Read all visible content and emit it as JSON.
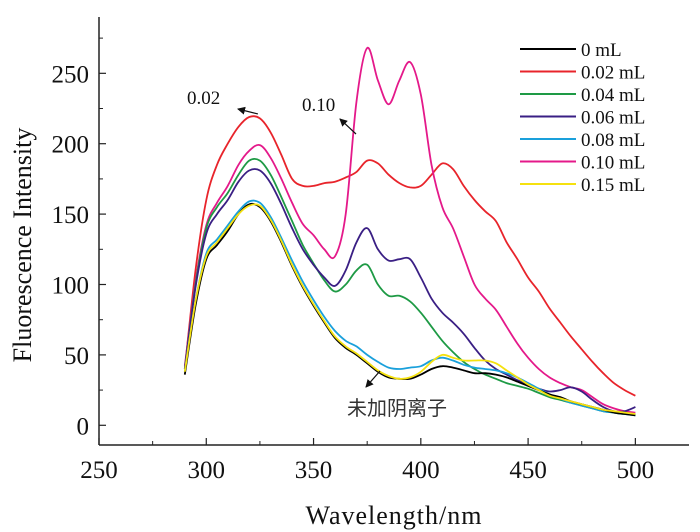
{
  "chart_data": {
    "type": "line",
    "title": "",
    "xlabel": "Wavelength/nm",
    "ylabel": "Fluorescence Intensity",
    "xlim": [
      250,
      525
    ],
    "ylim": [
      -14,
      290
    ],
    "xticks": [
      250,
      300,
      350,
      400,
      450,
      500
    ],
    "xtick_labels": [
      "250",
      "300",
      "350",
      "400",
      "450",
      "500"
    ],
    "yticks": [
      0,
      50,
      100,
      150,
      200,
      250
    ],
    "ytick_labels": [
      "0",
      "50",
      "100",
      "150",
      "200",
      "250"
    ],
    "grid": false,
    "legend_position": "top-right",
    "series": [
      {
        "name": "0 mL",
        "color": "#000000",
        "x": [
          290,
          295,
          300,
          305,
          310,
          315,
          320,
          325,
          330,
          335,
          340,
          345,
          350,
          355,
          360,
          365,
          370,
          375,
          380,
          385,
          390,
          395,
          400,
          405,
          410,
          415,
          420,
          425,
          430,
          435,
          440,
          445,
          450,
          455,
          460,
          465,
          470,
          475,
          480,
          485,
          490,
          495,
          500
        ],
        "y": [
          36,
          85,
          118,
          128,
          138,
          150,
          157,
          155,
          145,
          130,
          113,
          98,
          85,
          73,
          62,
          55,
          50,
          44,
          38,
          34,
          33,
          33,
          36,
          40,
          42,
          41,
          39,
          37,
          37,
          36,
          34,
          31,
          28,
          25,
          22,
          20,
          17,
          15,
          13,
          11,
          9,
          8,
          7
        ]
      },
      {
        "name": "0.02 mL",
        "color": "#e8242b",
        "x": [
          290,
          295,
          300,
          305,
          310,
          315,
          320,
          325,
          330,
          335,
          340,
          345,
          350,
          355,
          360,
          365,
          370,
          375,
          380,
          385,
          390,
          395,
          400,
          405,
          410,
          415,
          420,
          425,
          430,
          435,
          440,
          445,
          450,
          455,
          460,
          465,
          470,
          475,
          480,
          485,
          490,
          495,
          500
        ],
        "y": [
          40,
          110,
          160,
          185,
          200,
          212,
          219,
          218,
          208,
          192,
          175,
          170,
          170,
          172,
          173,
          176,
          180,
          188,
          186,
          178,
          172,
          169,
          170,
          178,
          186,
          182,
          170,
          160,
          152,
          145,
          130,
          118,
          105,
          95,
          83,
          73,
          63,
          54,
          45,
          37,
          30,
          25,
          21
        ]
      },
      {
        "name": "0.04 mL",
        "color": "#1e9a45",
        "x": [
          290,
          295,
          300,
          305,
          310,
          315,
          320,
          325,
          330,
          335,
          340,
          345,
          350,
          355,
          360,
          365,
          370,
          375,
          380,
          385,
          390,
          395,
          400,
          405,
          410,
          415,
          420,
          425,
          430,
          435,
          440,
          445,
          450,
          455,
          460,
          465,
          470,
          475,
          480,
          485,
          490,
          495,
          500
        ],
        "y": [
          40,
          100,
          140,
          155,
          165,
          178,
          188,
          188,
          178,
          162,
          145,
          128,
          115,
          103,
          95,
          100,
          110,
          114,
          100,
          92,
          92,
          88,
          80,
          70,
          60,
          52,
          45,
          40,
          36,
          33,
          30,
          28,
          26,
          23,
          20,
          18,
          16,
          14,
          12,
          10,
          9,
          8,
          8
        ]
      },
      {
        "name": "0.06 mL",
        "color": "#3a1f84",
        "x": [
          290,
          295,
          300,
          305,
          310,
          315,
          320,
          325,
          330,
          335,
          340,
          345,
          350,
          355,
          360,
          365,
          370,
          375,
          380,
          385,
          390,
          395,
          400,
          405,
          410,
          415,
          420,
          425,
          430,
          435,
          440,
          445,
          450,
          455,
          460,
          465,
          470,
          475,
          480,
          485,
          490,
          495,
          500
        ],
        "y": [
          40,
          98,
          136,
          150,
          160,
          173,
          181,
          181,
          172,
          157,
          140,
          125,
          114,
          105,
          99,
          110,
          130,
          140,
          125,
          117,
          118,
          118,
          105,
          90,
          80,
          73,
          65,
          55,
          46,
          40,
          36,
          32,
          29,
          26,
          24,
          25,
          27,
          24,
          18,
          13,
          10,
          10,
          13
        ]
      },
      {
        "name": "0.08 mL",
        "color": "#1aa0db",
        "x": [
          290,
          295,
          300,
          305,
          310,
          315,
          320,
          325,
          330,
          335,
          340,
          345,
          350,
          355,
          360,
          365,
          370,
          375,
          380,
          385,
          390,
          395,
          400,
          405,
          410,
          415,
          420,
          425,
          430,
          435,
          440,
          445,
          450,
          455,
          460,
          465,
          470,
          475,
          480,
          485,
          490,
          495,
          500
        ],
        "y": [
          38,
          88,
          122,
          132,
          142,
          152,
          159,
          158,
          148,
          133,
          117,
          102,
          89,
          77,
          67,
          60,
          56,
          50,
          45,
          41,
          40,
          41,
          42,
          46,
          48,
          46,
          43,
          41,
          40,
          39,
          37,
          34,
          30,
          26,
          22,
          19,
          16,
          14,
          12,
          10,
          9,
          8,
          7
        ]
      },
      {
        "name": "0.10 mL",
        "color": "#e4198a",
        "x": [
          290,
          295,
          300,
          305,
          310,
          315,
          320,
          325,
          330,
          335,
          340,
          345,
          350,
          355,
          360,
          365,
          370,
          375,
          380,
          385,
          390,
          395,
          400,
          405,
          410,
          415,
          420,
          425,
          430,
          435,
          440,
          445,
          450,
          455,
          460,
          465,
          470,
          475,
          480,
          485,
          490,
          495,
          500
        ],
        "y": [
          42,
          102,
          142,
          158,
          170,
          185,
          195,
          199,
          190,
          175,
          158,
          143,
          135,
          125,
          120,
          150,
          230,
          268,
          245,
          228,
          245,
          258,
          235,
          185,
          155,
          140,
          120,
          100,
          90,
          82,
          70,
          58,
          48,
          40,
          34,
          30,
          27,
          25,
          20,
          15,
          12,
          10,
          9
        ]
      },
      {
        "name": "0.15 mL",
        "color": "#f5e10f",
        "x": [
          290,
          295,
          300,
          305,
          310,
          315,
          320,
          325,
          330,
          335,
          340,
          345,
          350,
          355,
          360,
          365,
          370,
          375,
          380,
          385,
          390,
          395,
          400,
          405,
          410,
          415,
          420,
          425,
          430,
          435,
          440,
          445,
          450,
          455,
          460,
          465,
          470,
          475,
          480,
          485,
          490,
          495,
          500
        ],
        "y": [
          38,
          88,
          120,
          130,
          140,
          150,
          156,
          156,
          146,
          131,
          114,
          99,
          86,
          74,
          63,
          56,
          51,
          45,
          39,
          35,
          33,
          34,
          38,
          45,
          50,
          48,
          46,
          46,
          46,
          44,
          39,
          34,
          29,
          25,
          21,
          19,
          17,
          15,
          13,
          11,
          10,
          9,
          8
        ]
      }
    ],
    "annotations": [
      {
        "text": "0.02",
        "points_to": {
          "x": 325,
          "y": 219
        }
      },
      {
        "text": "0.10",
        "points_to": {
          "x": 368,
          "y": 205
        }
      },
      {
        "text": "未加阴离子",
        "points_to": {
          "x": 380,
          "y": 33
        }
      }
    ]
  }
}
